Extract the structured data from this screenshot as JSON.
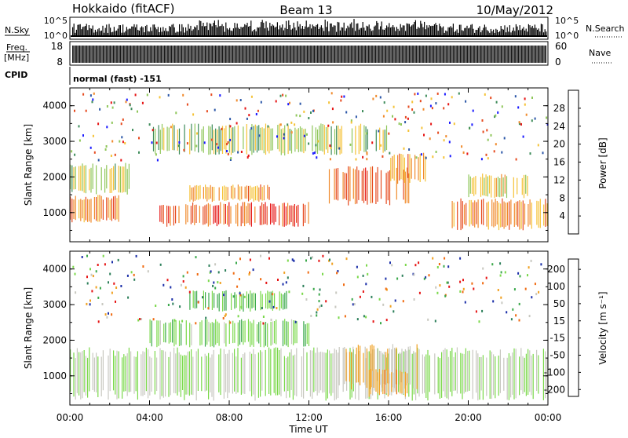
{
  "header": {
    "left_title": "Hokkaido (fitACF)",
    "center_title": "Beam 13",
    "right_title": "10/May/2012"
  },
  "status_panels": {
    "nsky_label": "N.Sky",
    "nsky_ticks": [
      "10^5",
      "10^0"
    ],
    "nsearch_label": "N.Search",
    "nsearch_ticks": [
      "10^5",
      "10^0"
    ],
    "freq_label_line1": "Freq.",
    "freq_label_line2": "[MHz]",
    "freq_ticks": [
      "18",
      "8"
    ],
    "nave_label": "Nave",
    "nave_ticks": [
      "60",
      "0"
    ],
    "cpid_label": "CPID",
    "cpid_value": "normal (fast) -151"
  },
  "chart_data": [
    {
      "type": "heatmap",
      "name": "power",
      "ylabel": "Slant Range [km]",
      "ylim": [
        180,
        4500
      ],
      "yticks": [
        "1000",
        "2000",
        "3000",
        "4000"
      ],
      "colorbar_label": "Power [dB]",
      "colorbar_ticks": [
        "4",
        "8",
        "12",
        "16",
        "20",
        "24",
        "28"
      ],
      "colors": [
        "#1a1aff",
        "#2c57a8",
        "#3e8c5a",
        "#8fc65a",
        "#f5c236",
        "#f08a2c",
        "#e64a1e",
        "#e61414"
      ],
      "regions": [
        {
          "t0": 0.0,
          "t1": 2.5,
          "r0": 700,
          "r1": 1500,
          "level": 0.75
        },
        {
          "t0": 0.0,
          "t1": 3.0,
          "r0": 1500,
          "r1": 2400,
          "level": 0.5
        },
        {
          "t0": 4.5,
          "t1": 12.0,
          "r0": 600,
          "r1": 1300,
          "level": 0.85
        },
        {
          "t0": 6.0,
          "t1": 10.0,
          "r0": 1300,
          "r1": 1800,
          "level": 0.65
        },
        {
          "t0": 13.0,
          "t1": 17.0,
          "r0": 1200,
          "r1": 2300,
          "level": 0.8
        },
        {
          "t0": 16.0,
          "t1": 18.0,
          "r0": 1800,
          "r1": 2700,
          "level": 0.7
        },
        {
          "t0": 19.0,
          "t1": 24.0,
          "r0": 500,
          "r1": 1400,
          "level": 0.7
        },
        {
          "t0": 20.0,
          "t1": 23.0,
          "r0": 1400,
          "r1": 2100,
          "level": 0.55
        },
        {
          "t0": 4.0,
          "t1": 16.0,
          "r0": 2600,
          "r1": 3500,
          "level": 0.45
        }
      ]
    },
    {
      "type": "heatmap",
      "name": "velocity",
      "xlabel": "Time UT",
      "ylabel": "Slant Range [km]",
      "ylim": [
        180,
        4500
      ],
      "yticks": [
        "1000",
        "2000",
        "3000",
        "4000"
      ],
      "xticks": [
        "00:00",
        "04:00",
        "08:00",
        "12:00",
        "16:00",
        "20:00",
        "00:00"
      ],
      "colorbar_label": "Velocity [m s⁻¹]",
      "colorbar_ticks": [
        "200",
        "100",
        "50",
        "15",
        "-15",
        "-50",
        "-100",
        "-200"
      ],
      "colors": [
        "#1a2ea8",
        "#2c7f5a",
        "#3aa84a",
        "#7ad84a",
        "#c8c8c0",
        "#f0a020",
        "#f06a10",
        "#e61414"
      ],
      "regions": [
        {
          "t0": 0.0,
          "t1": 24.0,
          "r0": 300,
          "r1": 1800,
          "level": 0.5
        },
        {
          "t0": 13.5,
          "t1": 17.5,
          "r0": 600,
          "r1": 1900,
          "level": 0.35
        },
        {
          "t0": 15.0,
          "t1": 17.0,
          "r0": 400,
          "r1": 1200,
          "level": 0.3
        },
        {
          "t0": 6.0,
          "t1": 11.0,
          "r0": 2800,
          "r1": 3400,
          "level": 0.65
        },
        {
          "t0": 4.0,
          "t1": 12.0,
          "r0": 1800,
          "r1": 2600,
          "level": 0.6
        }
      ]
    }
  ]
}
